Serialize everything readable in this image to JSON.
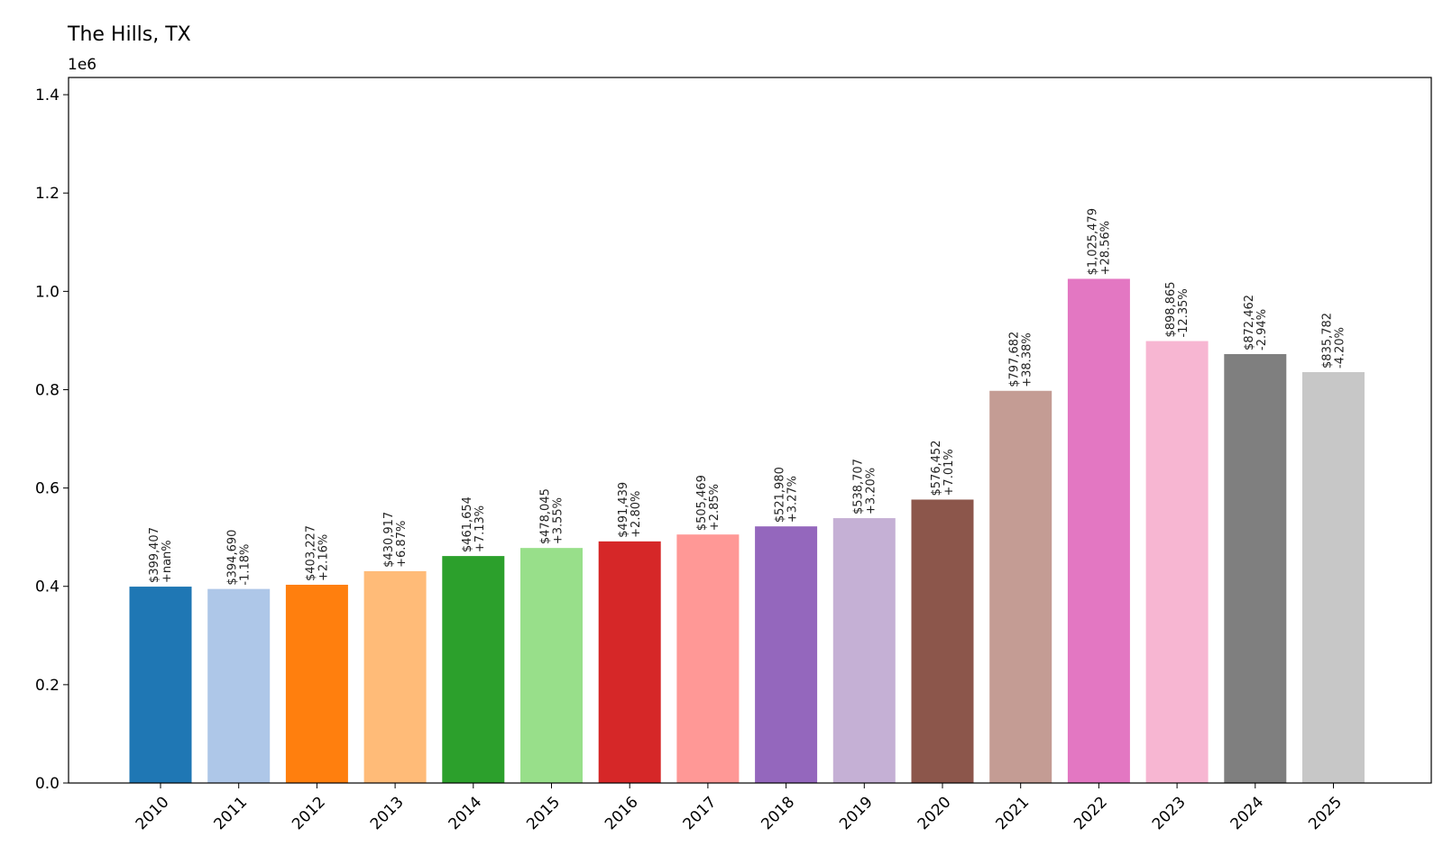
{
  "chart_data": {
    "type": "bar",
    "title": "The Hills, TX",
    "y_offset_label": "1e6",
    "xlabel": "",
    "ylabel": "",
    "ylim": [
      0,
      1435000
    ],
    "yticks": [
      0,
      200000,
      400000,
      600000,
      800000,
      1000000,
      1200000,
      1400000
    ],
    "ytick_labels": [
      "0.0",
      "0.2",
      "0.4",
      "0.6",
      "0.8",
      "1.0",
      "1.2",
      "1.4"
    ],
    "grid": false,
    "categories": [
      "2010",
      "2011",
      "2012",
      "2013",
      "2014",
      "2015",
      "2016",
      "2017",
      "2018",
      "2019",
      "2020",
      "2021",
      "2022",
      "2023",
      "2024",
      "2025"
    ],
    "values": [
      399407,
      394690,
      403227,
      430917,
      461654,
      478045,
      491439,
      505469,
      521980,
      538707,
      576452,
      797682,
      1025479,
      898865,
      872462,
      835782
    ],
    "value_labels": [
      "$399,407",
      "$394,690",
      "$403,227",
      "$430,917",
      "$461,654",
      "$478,045",
      "$491,439",
      "$505,469",
      "$521,980",
      "$538,707",
      "$576,452",
      "$797,682",
      "$1,025,479",
      "$898,865",
      "$872,462",
      "$835,782"
    ],
    "change_labels": [
      "+nan%",
      "-1.18%",
      "+2.16%",
      "+6.87%",
      "+7.13%",
      "+3.55%",
      "+2.80%",
      "+2.85%",
      "+3.27%",
      "+3.20%",
      "+7.01%",
      "+38.38%",
      "+28.56%",
      "-12.35%",
      "-2.94%",
      "-4.20%"
    ],
    "colors": [
      "#1f77b4",
      "#aec7e8",
      "#ff7f0e",
      "#ffbb78",
      "#2ca02c",
      "#98df8a",
      "#d62728",
      "#ff9896",
      "#9467bd",
      "#c5b0d5",
      "#8c564b",
      "#c49c94",
      "#e377c2",
      "#f7b6d2",
      "#7f7f7f",
      "#c7c7c7"
    ]
  }
}
